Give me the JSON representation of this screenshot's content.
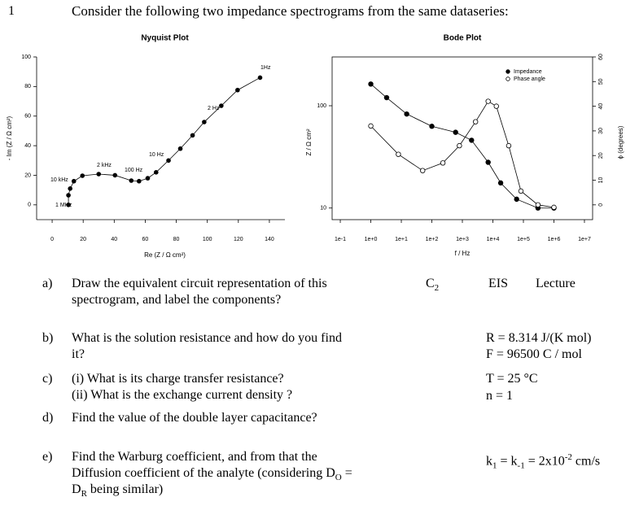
{
  "page": {
    "number": "1",
    "intro": "Consider the following two impedance spectrograms from the same dataseries:"
  },
  "questions": [
    {
      "label": "a)",
      "lines": [
        [
          "Draw the equivalent circuit representation of this"
        ],
        [
          "spectrogram, and label the components?"
        ]
      ]
    },
    {
      "label": "b)",
      "lines": [
        [
          "What is the solution resistance and how do you find"
        ],
        [
          "it?"
        ]
      ]
    },
    {
      "label": "c)",
      "lines": [
        [
          "(i) What is its charge transfer resistance?"
        ],
        [
          "(ii) What is the exchange current density ?"
        ]
      ]
    },
    {
      "label": "d)",
      "lines": [
        [
          "Find the value of the double layer capacitance?"
        ]
      ]
    },
    {
      "label": "e)",
      "lines": [
        [
          "Find the Warburg coefficient, and from that the"
        ],
        [
          "Diffusion coefficient of the analyte (considering D",
          {
            "sub": "O"
          },
          " ="
        ],
        [
          "D",
          {
            "sub": "R"
          },
          " being similar)"
        ]
      ]
    }
  ],
  "tags": [
    [
      "C",
      {
        "sub": "2"
      }
    ],
    [
      "EIS"
    ],
    [
      "Lecture"
    ]
  ],
  "constants": [
    [
      "R = 8.314 J/(K mol)"
    ],
    [
      "F = 96500 C / mol"
    ],
    [
      "T = 25 °C"
    ],
    [
      "n = 1"
    ],
    [
      "k",
      {
        "sub": "1"
      },
      " = k",
      {
        "sub": "-1"
      },
      " = 2x10",
      {
        "sup": "-2"
      },
      " cm/s"
    ]
  ],
  "chart_data": [
    {
      "type": "line",
      "title": "Nyquist Plot",
      "x_label": "Re (Z / Ω cm²)",
      "y_label": "- Im (Z / Ω cm²)",
      "x": [
        10.5,
        10.5,
        11.6,
        14,
        19.5,
        30,
        40.5,
        51,
        56,
        61.6,
        67,
        75,
        82.6,
        90.5,
        98,
        109,
        119.5,
        134
      ],
      "values": [
        0,
        6.5,
        11,
        16,
        19.7,
        20.8,
        20,
        16.4,
        16,
        18,
        22,
        30,
        38,
        47,
        56,
        67,
        77.6,
        86
      ],
      "color": "#000000",
      "xlim": [
        -10,
        150
      ],
      "xticks": [
        0,
        20,
        40,
        60,
        80,
        100,
        120,
        140
      ],
      "ylim": [
        -10,
        100
      ],
      "yticks": [
        0,
        20,
        40,
        60,
        80,
        100
      ],
      "annotations": [
        "1 MHz",
        "10 kHz",
        "2 kHz",
        "100 Hz",
        "10 Hz",
        "2 Hz",
        "1Hz"
      ]
    },
    {
      "type": "bode",
      "title": "Bode Plot",
      "x_label": "f / Hz",
      "y_label": "Z / Ω cm²",
      "y2_label": "ϕ (degrees)",
      "x_log": true,
      "y_log": true,
      "legend": "upper right",
      "xlim": [
        0.054,
        18500000
      ],
      "xticks": [
        {
          "value": 0.1,
          "label": "1e-1"
        },
        {
          "value": 1,
          "label": "1e+0"
        },
        {
          "value": 10,
          "label": "1e+1"
        },
        {
          "value": 100,
          "label": "1e+2"
        },
        {
          "value": 1000,
          "label": "1e+3"
        },
        {
          "value": 10000,
          "label": "1e+4"
        },
        {
          "value": 100000,
          "label": "1e+5"
        },
        {
          "value": 1000000,
          "label": "1e+6"
        },
        {
          "value": 10000000,
          "label": "1e+7"
        }
      ],
      "ylim": [
        7.7,
        300
      ],
      "yticks": [
        10,
        100
      ],
      "y2lim": [
        -6,
        60
      ],
      "y2ticks": [
        0,
        10,
        20,
        30,
        40,
        50,
        60
      ],
      "series": [
        {
          "name": "Impedance",
          "color": "#000000",
          "marker": "filled",
          "x": [
            1,
            3.3,
            15,
            100,
            600,
            2000,
            7000,
            18000,
            60000,
            300000,
            1000000
          ],
          "values": [
            163,
            120,
            83,
            63,
            55,
            46,
            28,
            17.6,
            12.2,
            10,
            10
          ]
        },
        {
          "name": "Phase angle",
          "color": "#000000",
          "marker": "open",
          "axis": "y2",
          "x": [
            1,
            8,
            50,
            230,
            800,
            2700,
            7000,
            13000,
            33000,
            83000,
            300000,
            1000000
          ],
          "values": [
            32,
            20.5,
            13.9,
            17,
            24,
            33.7,
            42,
            40,
            24,
            5.6,
            0,
            -1
          ]
        }
      ]
    }
  ]
}
